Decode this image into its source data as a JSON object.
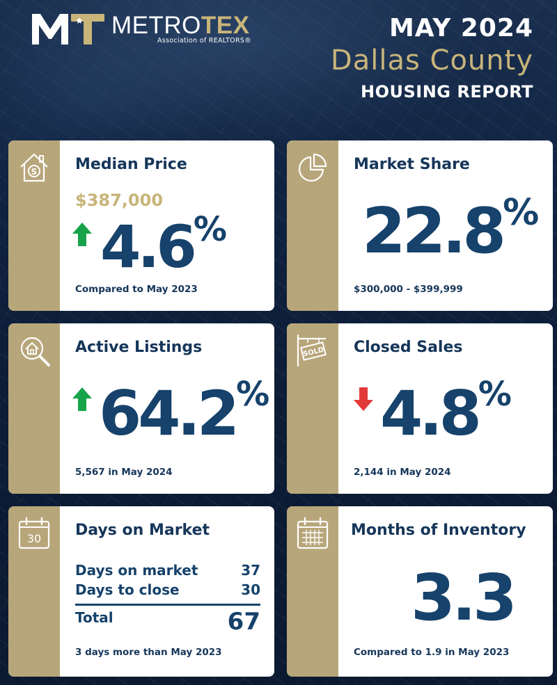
{
  "header": {
    "logo_metro": "METRO",
    "logo_tex": "TEX",
    "logo_sub": "Association of REALTORS®",
    "month": "MAY 2024",
    "county": "Dallas County",
    "report": "HOUSING REPORT"
  },
  "colors": {
    "navy": "#16426b",
    "gold": "#b8a67b",
    "gold_text": "#c8b57a",
    "up_arrow": "#17a34a",
    "down_arrow": "#e23a3a"
  },
  "median_price": {
    "title": "Median Price",
    "icon": "house-dollar-icon",
    "price": "$387,000",
    "change_value": "4.6",
    "change_unit": "%",
    "direction": "up",
    "footnote": "Compared to May 2023"
  },
  "market_share": {
    "title": "Market Share",
    "icon": "pie-chart-icon",
    "value": "22.8",
    "unit": "%",
    "footnote": "$300,000 - $399,999"
  },
  "active_listings": {
    "title": "Active Listings",
    "icon": "house-search-icon",
    "change_value": "64.2",
    "change_unit": "%",
    "direction": "up",
    "footnote": "5,567 in May 2024"
  },
  "closed_sales": {
    "title": "Closed Sales",
    "icon": "sold-sign-icon",
    "change_value": "4.8",
    "change_unit": "%",
    "direction": "down",
    "footnote": "2,144 in May 2024"
  },
  "days_on_market": {
    "title": "Days on Market",
    "icon": "calendar-30-icon",
    "icon_text": "30",
    "rows": [
      {
        "label": "Days on market",
        "value": "37"
      },
      {
        "label": "Days to close",
        "value": "30"
      }
    ],
    "total_label": "Total",
    "total_value": "67",
    "footnote": "3 days more than May 2023"
  },
  "months_inventory": {
    "title": "Months of Inventory",
    "icon": "calendar-grid-icon",
    "value": "3.3",
    "footnote": "Compared to 1.9 in May 2023"
  }
}
